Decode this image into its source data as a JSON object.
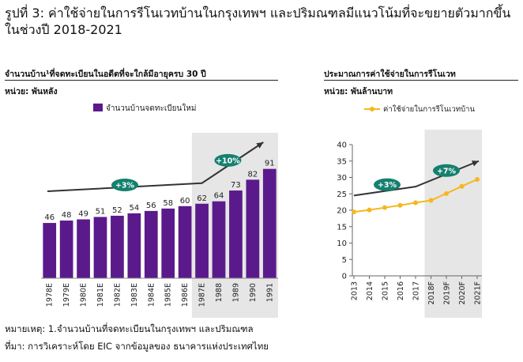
{
  "figure_title": "รูปที่ 3: ค่าใช้จ่ายในการรีโนเวทบ้านในกรุงเทพฯ และปริมณฑลมีแนวโน้มที่จะขยายตัวมากขึ้นในช่วงปี 2018-2021",
  "footnote": "หมายเหตุ: 1.จำนวนบ้านที่จดทะเบียนในกรุงเทพฯ และปริมณฑล",
  "source": "ที่มา: การวิเคราะห์โดย EIC จากข้อมูลของ ธนาคารแห่งประเทศไทย",
  "colors": {
    "bar": "#5b1a8b",
    "line": "#f6b71e",
    "arrow": "#333333",
    "badge": "#15806f",
    "shade": "#e6e6e6"
  },
  "chart_data": [
    {
      "type": "bar",
      "title": "จำนวนบ้าน¹ที่จดทะเบียนในอดีตที่จะใกล้มีอายุครบ 30 ปี",
      "unit": "หน่วย: พันหลัง",
      "legend": "จำนวนบ้านจดทะเบียนใหม่",
      "legend_position": "top-left",
      "categories": [
        "1978E",
        "1979E",
        "1980E",
        "1981E",
        "1982E",
        "1983E",
        "1984E",
        "1985E",
        "1986E",
        "1987E",
        "1988",
        "1989",
        "1990",
        "1991"
      ],
      "values": [
        46,
        48,
        49,
        51,
        52,
        54,
        56,
        58,
        60,
        62,
        64,
        73,
        82,
        91
      ],
      "ylim": [
        0,
        100
      ],
      "shaded_from": "1987E",
      "annotations": [
        "+3%",
        "+10%"
      ]
    },
    {
      "type": "line",
      "title": "ประมาณการค่าใช้จ่ายในการรีโนเวท",
      "unit": "หน่วย: พันล้านบาท",
      "legend": "ค่าใช้จ่ายในการรีโนเวทบ้าน",
      "legend_position": "top",
      "x": [
        "2013",
        "2014",
        "2015",
        "2016",
        "2017",
        "2018F",
        "2019F",
        "2020F",
        "2021F"
      ],
      "values": [
        19.5,
        20.1,
        20.8,
        21.5,
        22.3,
        23.0,
        25.1,
        27.3,
        29.4
      ],
      "ylim": [
        0,
        40
      ],
      "yticks": [
        0,
        5,
        10,
        15,
        20,
        25,
        30,
        35,
        40
      ],
      "grid": false,
      "shaded_from": "2018F",
      "annotations": [
        "+3%",
        "+7%"
      ]
    }
  ]
}
